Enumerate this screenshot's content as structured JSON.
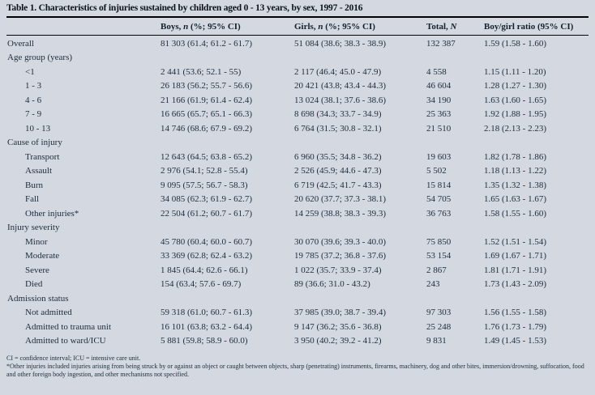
{
  "colors": {
    "background": "#d3d8e1",
    "text": "#1f2c3a",
    "rule": "#000000"
  },
  "table": {
    "title": "Table 1. Characteristics of injuries sustained by children aged 0 - 13 years, by sex, 1997 - 2016",
    "headers": {
      "col1": {
        "pre": "",
        "italic": "",
        "post": ""
      },
      "col2": {
        "pre": "Boys, ",
        "italic": "n",
        "post": " (%; 95% CI)"
      },
      "col3": {
        "pre": "Girls, ",
        "italic": "n",
        "post": " (%; 95% CI)"
      },
      "col4": {
        "pre": "Total, ",
        "italic": "N",
        "post": ""
      },
      "col5": {
        "pre": "Boy/girl ratio (95% CI)",
        "italic": "",
        "post": ""
      }
    },
    "rows": [
      {
        "label": "Overall",
        "indent": 0,
        "section": false,
        "boys": "81 303 (61.4; 61.2 - 61.7)",
        "girls": "51 084 (38.6; 38.3 - 38.9)",
        "total": "132 387",
        "ratio": "1.59 (1.58 - 1.60)"
      },
      {
        "label": "Age group (years)",
        "indent": 0,
        "section": true,
        "boys": "",
        "girls": "",
        "total": "",
        "ratio": ""
      },
      {
        "label": "<1",
        "indent": 1,
        "section": false,
        "boys": "2 441 (53.6; 52.1 - 55)",
        "girls": "2 117 (46.4; 45.0 - 47.9)",
        "total": "4 558",
        "ratio": "1.15 (1.11 - 1.20)"
      },
      {
        "label": "1 - 3",
        "indent": 1,
        "section": false,
        "boys": "26 183 (56.2; 55.7 - 56.6)",
        "girls": "20 421 (43.8; 43.4 - 44.3)",
        "total": "46 604",
        "ratio": "1.28 (1.27 - 1.30)"
      },
      {
        "label": "4 - 6",
        "indent": 1,
        "section": false,
        "boys": "21 166 (61.9; 61.4 - 62.4)",
        "girls": "13 024 (38.1; 37.6 - 38.6)",
        "total": "34 190",
        "ratio": "1.63 (1.60 - 1.65)"
      },
      {
        "label": "7 - 9",
        "indent": 1,
        "section": false,
        "boys": "16 665 (65.7; 65.1 - 66.3)",
        "girls": "8 698 (34.3; 33.7 - 34.9)",
        "total": "25 363",
        "ratio": "1.92 (1.88 - 1.95)"
      },
      {
        "label": "10 - 13",
        "indent": 1,
        "section": false,
        "boys": "14 746 (68.6; 67.9 - 69.2)",
        "girls": "6 764 (31.5; 30.8 - 32.1)",
        "total": "21 510",
        "ratio": "2.18 (2.13 - 2.23)"
      },
      {
        "label": "Cause of injury",
        "indent": 0,
        "section": true,
        "boys": "",
        "girls": "",
        "total": "",
        "ratio": ""
      },
      {
        "label": "Transport",
        "indent": 1,
        "section": false,
        "boys": "12 643 (64.5; 63.8 - 65.2)",
        "girls": "6 960 (35.5; 34.8 - 36.2)",
        "total": "19 603",
        "ratio": "1.82 (1.78 - 1.86)"
      },
      {
        "label": "Assault",
        "indent": 1,
        "section": false,
        "boys": "2 976 (54.1; 52.8 - 55.4)",
        "girls": "2 526 (45.9; 44.6 - 47.3)",
        "total": "5 502",
        "ratio": "1.18 (1.13 - 1.22)"
      },
      {
        "label": "Burn",
        "indent": 1,
        "section": false,
        "boys": "9 095 (57.5; 56.7 - 58.3)",
        "girls": "6 719 (42.5; 41.7 - 43.3)",
        "total": "15 814",
        "ratio": "1.35 (1.32 - 1.38)"
      },
      {
        "label": "Fall",
        "indent": 1,
        "section": false,
        "boys": "34 085 (62.3; 61.9 - 62.7)",
        "girls": "20 620 (37.7; 37.3 - 38.1)",
        "total": "54 705",
        "ratio": "1.65 (1.63 - 1.67)"
      },
      {
        "label": "Other injuries*",
        "indent": 1,
        "section": false,
        "boys": "22 504 (61.2; 60.7 - 61.7)",
        "girls": "14 259 (38.8; 38.3 - 39.3)",
        "total": "36 763",
        "ratio": "1.58 (1.55 - 1.60)"
      },
      {
        "label": "Injury severity",
        "indent": 0,
        "section": true,
        "boys": "",
        "girls": "",
        "total": "",
        "ratio": ""
      },
      {
        "label": "Minor",
        "indent": 1,
        "section": false,
        "boys": "45 780 (60.4; 60.0 - 60.7)",
        "girls": "30 070 (39.6; 39.3 - 40.0)",
        "total": "75 850",
        "ratio": "1.52 (1.51 - 1.54)"
      },
      {
        "label": "Moderate",
        "indent": 1,
        "section": false,
        "boys": "33 369 (62.8; 62.4 - 63.2)",
        "girls": "19 785 (37.2; 36.8 - 37.6)",
        "total": "53 154",
        "ratio": "1.69 (1.67 - 1.71)"
      },
      {
        "label": "Severe",
        "indent": 1,
        "section": false,
        "boys": "1 845 (64.4; 62.6 - 66.1)",
        "girls": "1 022 (35.7; 33.9 - 37.4)",
        "total": "2 867",
        "ratio": "1.81 (1.71 - 1.91)"
      },
      {
        "label": "Died",
        "indent": 1,
        "section": false,
        "boys": "154 (63.4; 57.6 - 69.7)",
        "girls": "89 (36.6; 31.0 - 43.2)",
        "total": "243",
        "ratio": "1.73 (1.43 - 2.09)"
      },
      {
        "label": "Admission status",
        "indent": 0,
        "section": true,
        "boys": "",
        "girls": "",
        "total": "",
        "ratio": ""
      },
      {
        "label": "Not admitted",
        "indent": 1,
        "section": false,
        "boys": "59 318 (61.0; 60.7 - 61.3)",
        "girls": "37 985 (39.0; 38.7 - 39.4)",
        "total": "97 303",
        "ratio": "1.56 (1.55 - 1.58)"
      },
      {
        "label": "Admitted to trauma unit",
        "indent": 1,
        "section": false,
        "boys": "16 101 (63.8; 63.2 - 64.4)",
        "girls": "9 147 (36.2; 35.6 - 36.8)",
        "total": "25 248",
        "ratio": "1.76 (1.73 - 1.79)"
      },
      {
        "label": "Admitted to ward/ICU",
        "indent": 1,
        "section": false,
        "boys": "5 881 (59.8; 58.9 - 60.0)",
        "girls": "3 950 (40.2; 39.2 - 41.2)",
        "total": "9 831",
        "ratio": "1.49 (1.45 - 1.53)"
      }
    ],
    "footnotes": [
      "CI = confidence interval; ICU = intensive care unit.",
      "*Other injuries included injuries arising from being struck by or against an object or caught between objects, sharp (penetrating) instruments, firearms, machinery, dog and other bites, immersion/drowning, suffocation, food and other foreign body ingestion, and other mechanisms not specified."
    ]
  }
}
